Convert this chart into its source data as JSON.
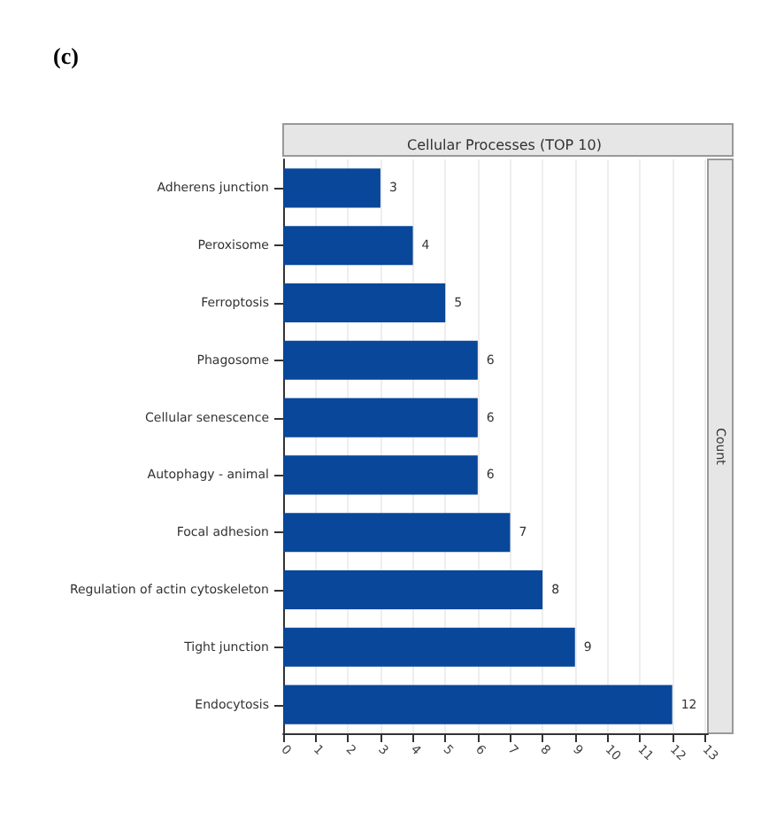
{
  "chart_data": {
    "type": "bar",
    "orientation": "horizontal",
    "title": "Cellular Processes (TOP 10)",
    "y2label": "Count",
    "annotations": [
      "(c)"
    ],
    "categories": [
      "Adherens junction",
      "Peroxisome",
      "Ferroptosis",
      "Phagosome",
      "Cellular senescence",
      "Autophagy - animal",
      "Focal adhesion",
      "Regulation of actin cytoskeleton",
      "Tight junction",
      "Endocytosis"
    ],
    "values": [
      3,
      4,
      5,
      6,
      6,
      6,
      7,
      8,
      9,
      12
    ],
    "color": "#08479a",
    "data_labels": true,
    "xlim": [
      0,
      13.1
    ],
    "xticks": [
      0,
      1,
      2,
      3,
      4,
      5,
      6,
      7,
      8,
      9,
      10,
      11,
      12,
      13
    ],
    "grid": "x"
  }
}
